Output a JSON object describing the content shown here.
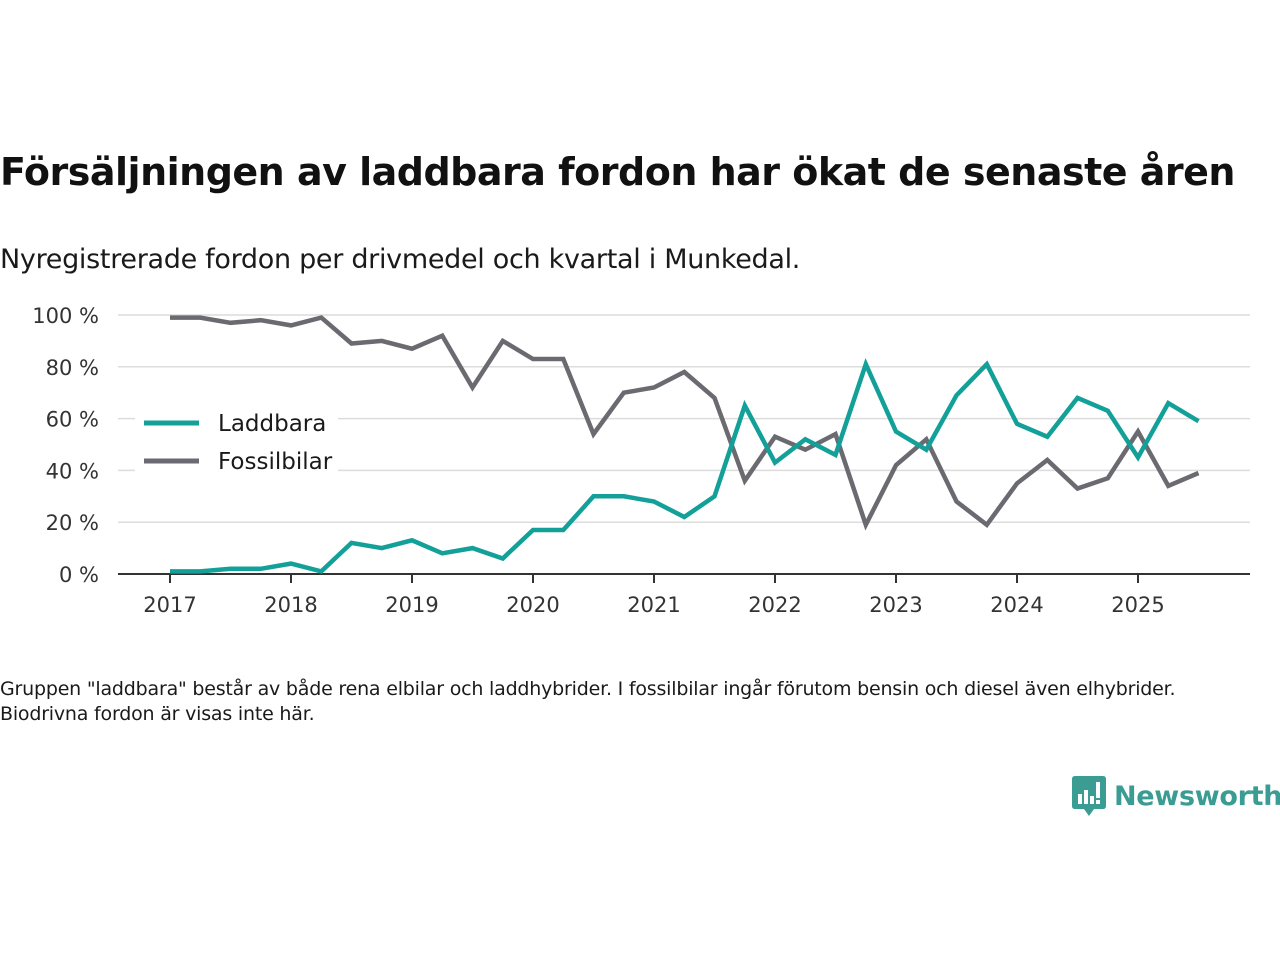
{
  "header": {
    "title": "Försäljningen av laddbara fordon har ökat de senaste åren",
    "subtitle": "Nyregistrerade fordon per drivmedel och kvartal i Munkedal."
  },
  "footer": {
    "note": "Gruppen \"laddbara\" består av både rena elbilar och laddhybrider. I fossilbilar ingår förutom bensin och diesel även elhybrider. Biodrivna fordon är visas inte här.",
    "brand": "Newsworthy"
  },
  "chart_data": {
    "type": "line",
    "title": "Försäljningen av laddbara fordon har ökat de senaste åren",
    "subtitle": "Nyregistrerade fordon per drivmedel och kvartal i Munkedal.",
    "xlabel": "",
    "ylabel": "",
    "ylim": [
      0,
      100
    ],
    "y_ticks": [
      0,
      20,
      40,
      60,
      80,
      100
    ],
    "y_tick_labels": [
      "0 %",
      "20 %",
      "40 %",
      "60 %",
      "80 %",
      "100 %"
    ],
    "x_tick_labels": [
      "2017",
      "2018",
      "2019",
      "2020",
      "2021",
      "2022",
      "2023",
      "2024",
      "2025"
    ],
    "x": [
      "2017Q1",
      "2017Q2",
      "2017Q3",
      "2017Q4",
      "2018Q1",
      "2018Q2",
      "2018Q3",
      "2018Q4",
      "2019Q1",
      "2019Q2",
      "2019Q3",
      "2019Q4",
      "2020Q1",
      "2020Q2",
      "2020Q3",
      "2020Q4",
      "2021Q1",
      "2021Q2",
      "2021Q3",
      "2021Q4",
      "2022Q1",
      "2022Q2",
      "2022Q3",
      "2022Q4",
      "2023Q1",
      "2023Q2",
      "2023Q3",
      "2023Q4",
      "2024Q1",
      "2024Q2",
      "2024Q3",
      "2024Q4",
      "2025Q1",
      "2025Q2",
      "2025Q3"
    ],
    "grid": true,
    "legend_position": "left",
    "series": [
      {
        "name": "Laddbara",
        "color": "#12a099",
        "values": [
          1,
          1,
          2,
          2,
          4,
          1,
          12,
          10,
          13,
          8,
          10,
          6,
          17,
          17,
          30,
          30,
          28,
          22,
          30,
          65,
          43,
          52,
          46,
          81,
          55,
          48,
          69,
          81,
          58,
          53,
          68,
          63,
          45,
          66,
          59
        ]
      },
      {
        "name": "Fossilbilar",
        "color": "#6b6a70",
        "values": [
          99,
          99,
          97,
          98,
          96,
          99,
          89,
          90,
          87,
          92,
          72,
          90,
          83,
          83,
          54,
          70,
          72,
          78,
          68,
          36,
          53,
          48,
          54,
          19,
          42,
          52,
          28,
          19,
          35,
          44,
          33,
          37,
          55,
          34,
          39
        ]
      }
    ]
  }
}
